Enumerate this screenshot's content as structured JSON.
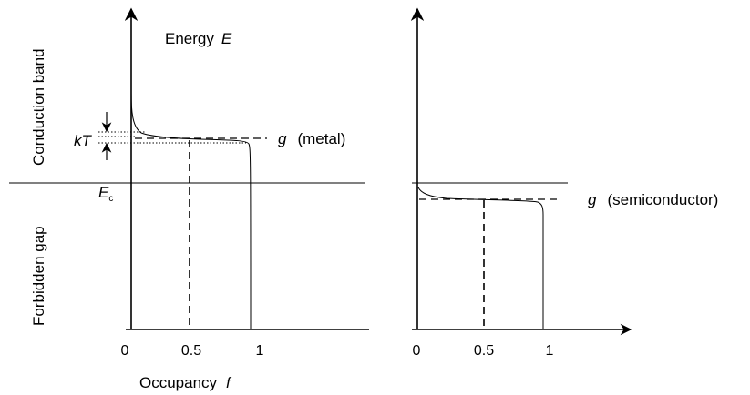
{
  "labels": {
    "energy_word": "Energy",
    "energy_symbol": "E",
    "conduction_band": "Conduction band",
    "forbidden_gap": "Forbidden gap",
    "kT": "kT",
    "Ec_main": "E",
    "Ec_sub": "c",
    "g_symbol_metal": "g",
    "metal_label": "(metal)",
    "g_symbol_semi": "g",
    "semi_label": "(semiconductor)",
    "occupancy_word": "Occupancy",
    "occupancy_symbol": "f"
  },
  "ticks": {
    "left": [
      "0",
      "0.5",
      "1"
    ],
    "right": [
      "0",
      "0.5",
      "1"
    ]
  }
}
